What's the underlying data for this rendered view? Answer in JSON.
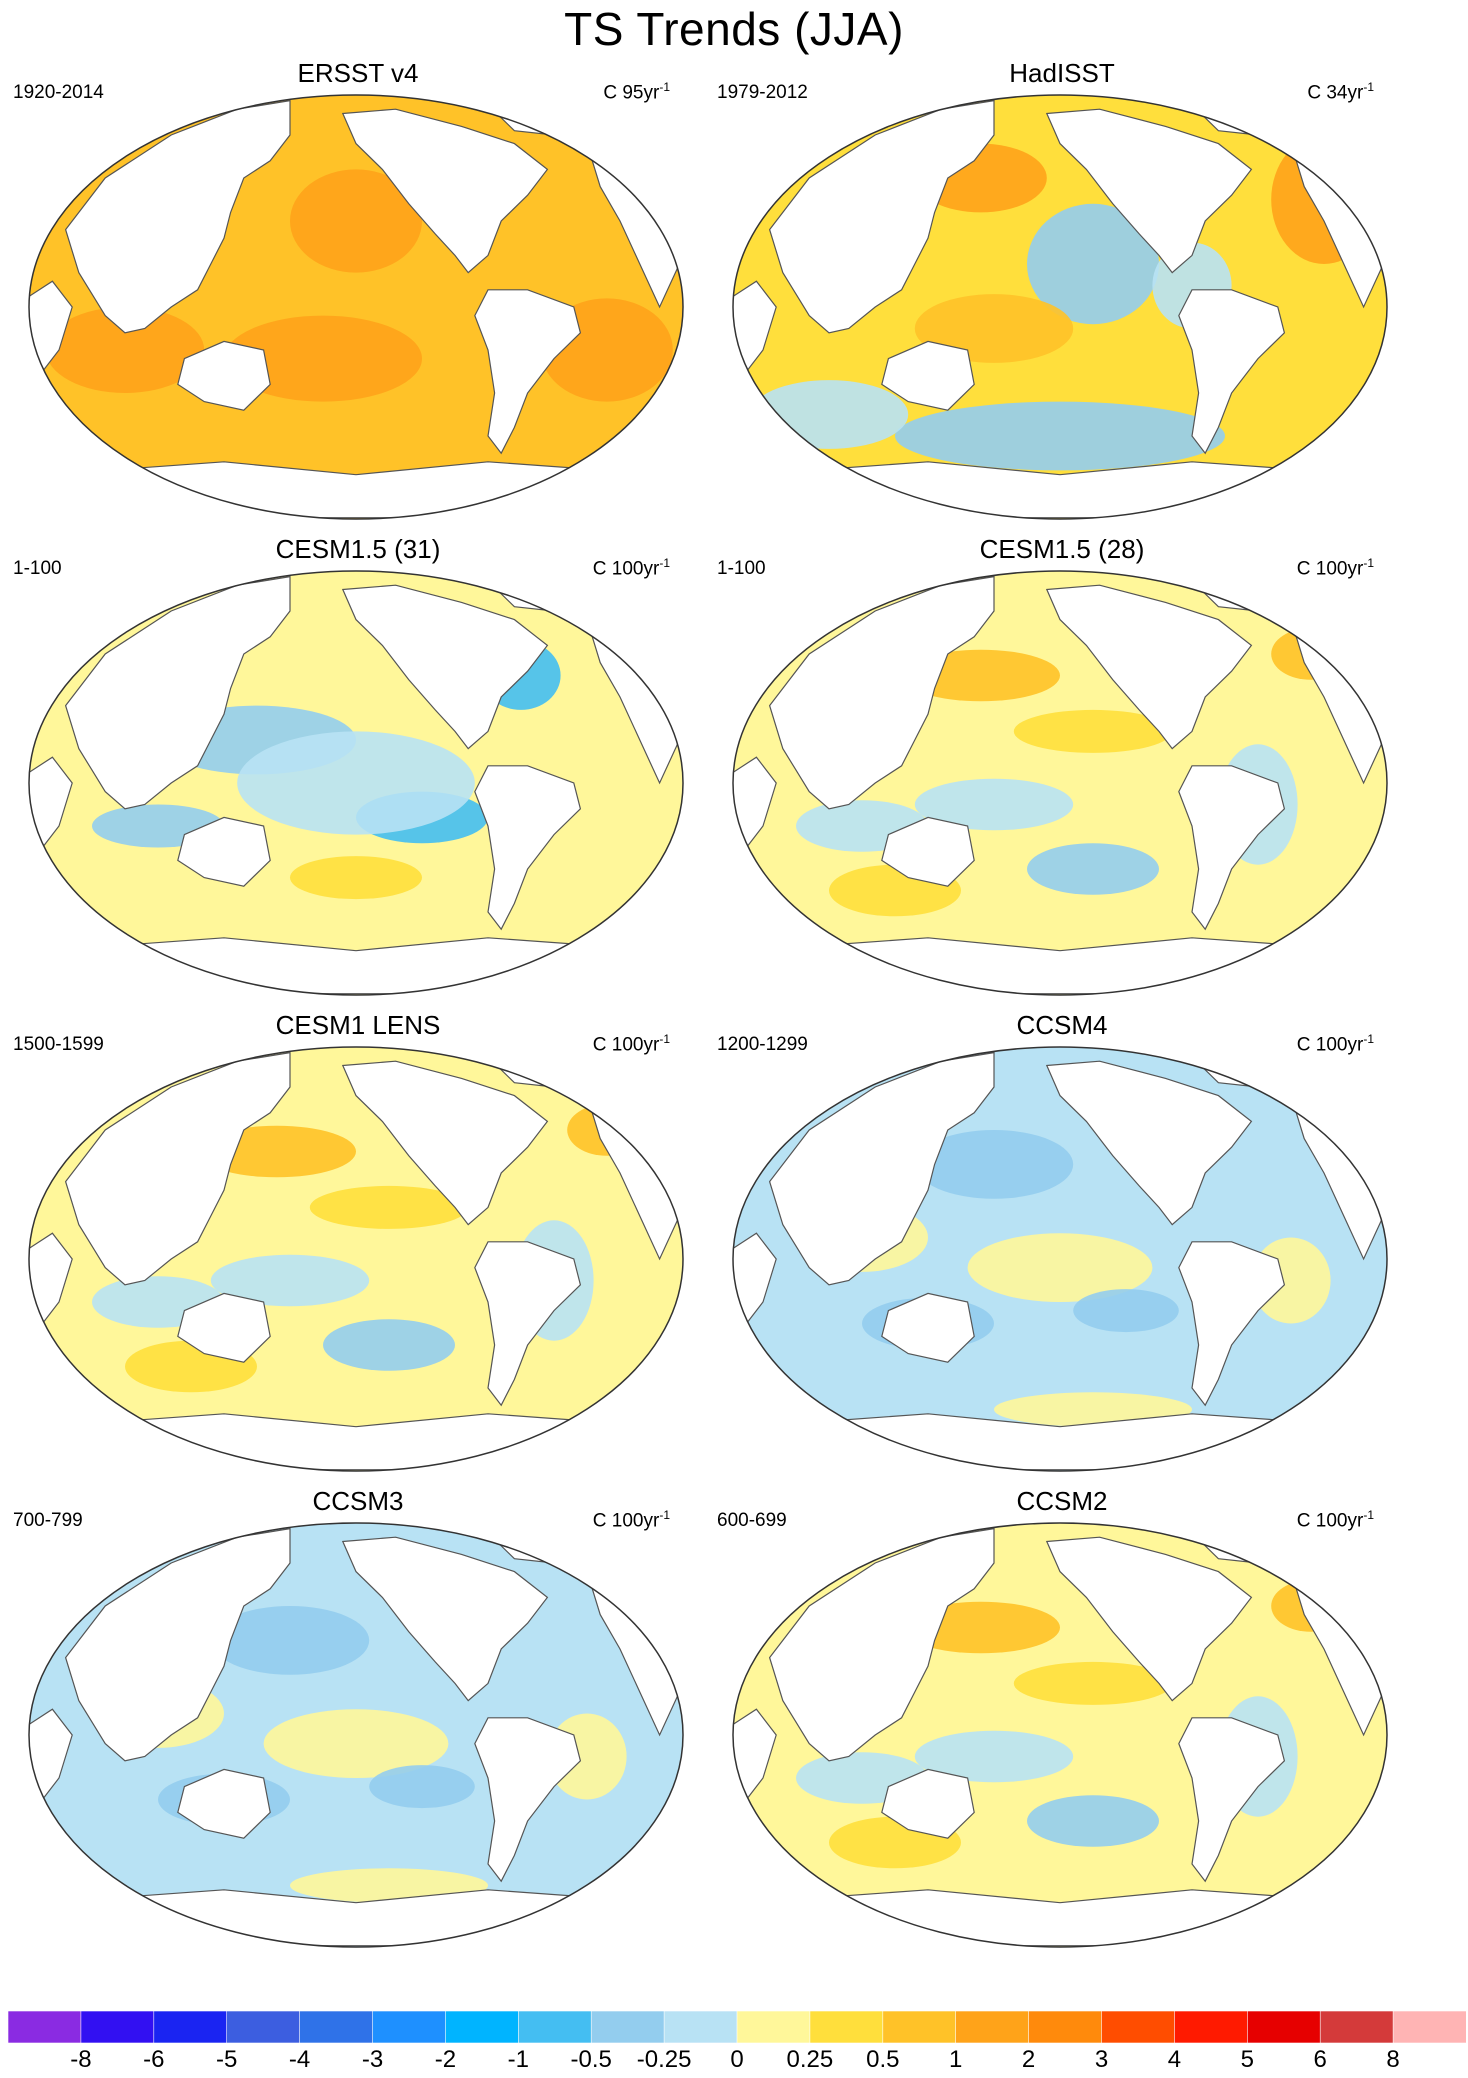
{
  "title": "TS Trends (JJA)",
  "units_prefix": "C",
  "units_suffix": "yr",
  "units_exponent": "-1",
  "colors": {
    "scale": [
      "#8a2be2",
      "#3210f2",
      "#1a24f2",
      "#3c5ee0",
      "#2f72e8",
      "#1e90ff",
      "#00b4ff",
      "#44bef2",
      "#93cdee",
      "#b8e2f4",
      "#fff79a",
      "#ffdf3c",
      "#ffc228",
      "#ffa319",
      "#ff8a0c",
      "#ff4d00",
      "#ff1a00",
      "#e60000",
      "#d43a3a",
      "#ffb4b4"
    ],
    "land": "#ffffff",
    "coast": "#555555"
  },
  "panels": [
    {
      "title": "ERSST v4",
      "period": "1920-2014",
      "units_value": "95",
      "tone": "warm"
    },
    {
      "title": "HadISST",
      "period": "1979-2012",
      "units_value": "34",
      "tone": "mixed_warm"
    },
    {
      "title": "CESM1.5 (31)",
      "period": "1-100",
      "units_value": "100",
      "tone": "mixed_cool"
    },
    {
      "title": "CESM1.5 (28)",
      "period": "1-100",
      "units_value": "100",
      "tone": "mixed"
    },
    {
      "title": "CESM1 LENS",
      "period": "1500-1599",
      "units_value": "100",
      "tone": "mixed"
    },
    {
      "title": "CCSM4",
      "period": "1200-1299",
      "units_value": "100",
      "tone": "cool"
    },
    {
      "title": "CCSM3",
      "period": "700-799",
      "units_value": "100",
      "tone": "cool"
    },
    {
      "title": "CCSM2",
      "period": "600-699",
      "units_value": "100",
      "tone": "mixed"
    }
  ],
  "colorbar": {
    "labels": [
      "-8",
      "-6",
      "-5",
      "-4",
      "-3",
      "-2",
      "-1",
      "-0.5",
      "-0.25",
      "0",
      "0.25",
      "0.5",
      "1",
      "2",
      "3",
      "4",
      "5",
      "6",
      "8"
    ]
  }
}
